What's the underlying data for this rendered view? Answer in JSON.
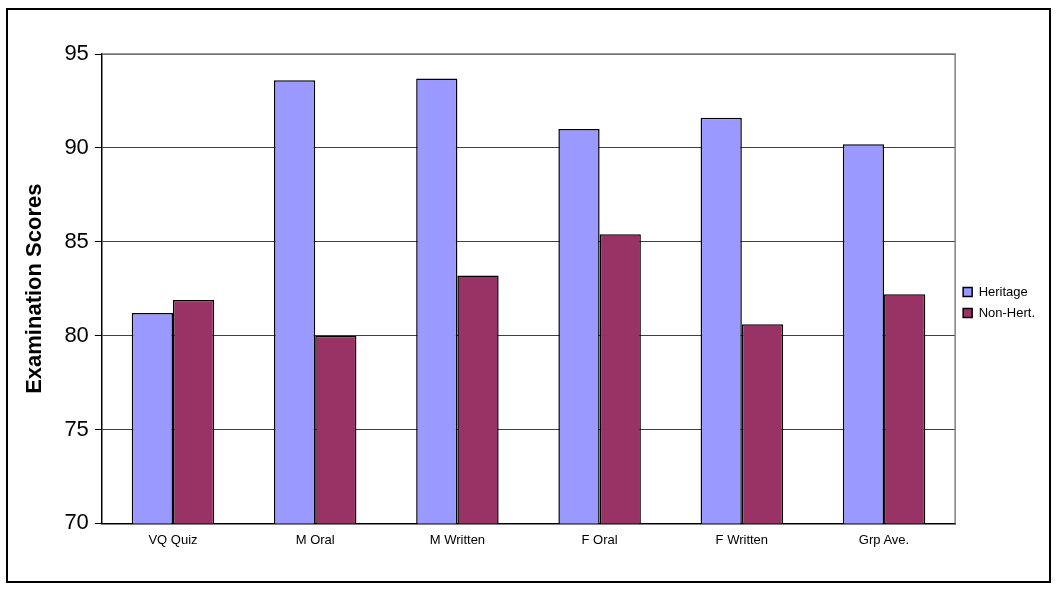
{
  "chart_data": {
    "type": "bar",
    "ylabel": "Examination Scores",
    "categories": [
      "VQ Quiz",
      "M Oral",
      "M Written",
      "F Oral",
      "F Written",
      "Grp Ave."
    ],
    "series": [
      {
        "name": "Heritage",
        "color": "#9999ff",
        "values": [
          81.2,
          93.6,
          93.7,
          91.0,
          91.6,
          90.2
        ]
      },
      {
        "name": "Non-Hert.",
        "color": "#993366",
        "values": [
          81.9,
          80.0,
          83.2,
          85.4,
          80.6,
          82.2
        ]
      }
    ],
    "ylim": [
      70,
      95
    ],
    "yticks": [
      70,
      75,
      80,
      85,
      90,
      95
    ],
    "grid": "y",
    "legend": "right"
  }
}
